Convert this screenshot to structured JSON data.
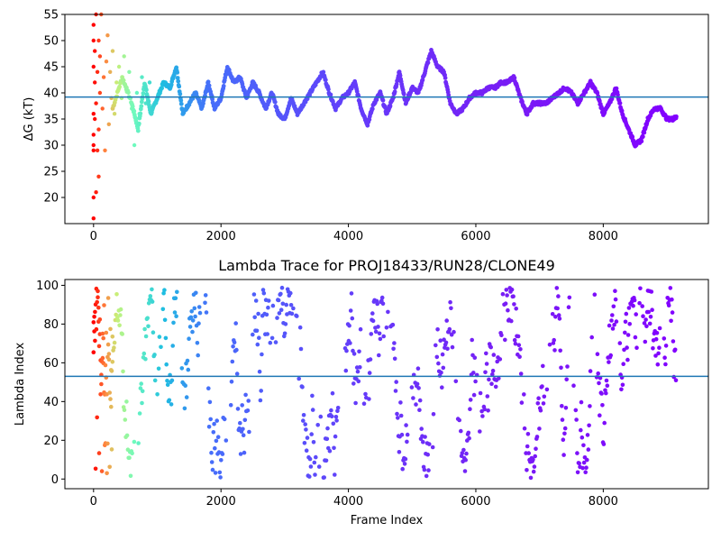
{
  "chart_data": [
    {
      "type": "scatter",
      "title": "",
      "xlabel": "",
      "ylabel": "ΔG (kT)",
      "xlim": [
        -450,
        9650
      ],
      "ylim": [
        15,
        55
      ],
      "xticks": [
        0,
        2000,
        4000,
        6000,
        8000
      ],
      "yticks": [
        20,
        25,
        30,
        35,
        40,
        45,
        50,
        55
      ],
      "hline": 39.2,
      "hline_color": "#1f77b4",
      "colormap": "rainbow (red at frame 0 → purple at last frame)",
      "grid": false,
      "trace_points": [
        [
          300,
          37
        ],
        [
          450,
          43
        ],
        [
          600,
          38
        ],
        [
          700,
          33
        ],
        [
          800,
          42
        ],
        [
          900,
          36
        ],
        [
          1000,
          39
        ],
        [
          1100,
          42
        ],
        [
          1200,
          41
        ],
        [
          1300,
          45
        ],
        [
          1400,
          36
        ],
        [
          1500,
          38
        ],
        [
          1600,
          40
        ],
        [
          1700,
          37
        ],
        [
          1800,
          42
        ],
        [
          1900,
          37
        ],
        [
          2000,
          39
        ],
        [
          2100,
          45
        ],
        [
          2200,
          42
        ],
        [
          2300,
          43
        ],
        [
          2400,
          39
        ],
        [
          2500,
          42
        ],
        [
          2600,
          40
        ],
        [
          2700,
          37
        ],
        [
          2800,
          40
        ],
        [
          2900,
          36
        ],
        [
          3000,
          35
        ],
        [
          3100,
          39
        ],
        [
          3200,
          36
        ],
        [
          3300,
          38
        ],
        [
          3400,
          40
        ],
        [
          3500,
          42
        ],
        [
          3600,
          44
        ],
        [
          3700,
          40
        ],
        [
          3800,
          37
        ],
        [
          3900,
          39
        ],
        [
          4000,
          40
        ],
        [
          4100,
          42
        ],
        [
          4200,
          37
        ],
        [
          4300,
          34
        ],
        [
          4400,
          38
        ],
        [
          4500,
          40
        ],
        [
          4600,
          36
        ],
        [
          4700,
          39
        ],
        [
          4800,
          44
        ],
        [
          4900,
          38
        ],
        [
          5000,
          41
        ],
        [
          5100,
          40
        ],
        [
          5200,
          44
        ],
        [
          5300,
          48
        ],
        [
          5400,
          45
        ],
        [
          5500,
          44
        ],
        [
          5600,
          38
        ],
        [
          5700,
          36
        ],
        [
          5800,
          37
        ],
        [
          5900,
          39
        ],
        [
          6000,
          40
        ],
        [
          6100,
          40
        ],
        [
          6200,
          41
        ],
        [
          6300,
          41
        ],
        [
          6400,
          42
        ],
        [
          6500,
          42
        ],
        [
          6600,
          43
        ],
        [
          6700,
          39
        ],
        [
          6800,
          36
        ],
        [
          6900,
          38
        ],
        [
          7000,
          38
        ],
        [
          7100,
          38
        ],
        [
          7200,
          39
        ],
        [
          7300,
          40
        ],
        [
          7400,
          41
        ],
        [
          7500,
          40
        ],
        [
          7600,
          38
        ],
        [
          7700,
          40
        ],
        [
          7800,
          42
        ],
        [
          7900,
          40
        ],
        [
          8000,
          36
        ],
        [
          8100,
          38
        ],
        [
          8200,
          41
        ],
        [
          8300,
          36
        ],
        [
          8400,
          33
        ],
        [
          8500,
          30
        ],
        [
          8600,
          31
        ],
        [
          8700,
          35
        ],
        [
          8800,
          37
        ],
        [
          8900,
          37
        ],
        [
          9000,
          35
        ],
        [
          9100,
          35
        ],
        [
          9150,
          35.5
        ]
      ],
      "early_scatter_points": [
        [
          0,
          16
        ],
        [
          0,
          20
        ],
        [
          0,
          30
        ],
        [
          0,
          32
        ],
        [
          0,
          45
        ],
        [
          0,
          50
        ],
        [
          0,
          53
        ],
        [
          0,
          36
        ],
        [
          0,
          29
        ],
        [
          20,
          48
        ],
        [
          20,
          35
        ],
        [
          20,
          42
        ],
        [
          40,
          55
        ],
        [
          40,
          21
        ],
        [
          40,
          38
        ],
        [
          60,
          29
        ],
        [
          60,
          44
        ],
        [
          80,
          24
        ],
        [
          80,
          50
        ],
        [
          80,
          33
        ],
        [
          100,
          47
        ],
        [
          100,
          40
        ],
        [
          120,
          55
        ],
        [
          140,
          37
        ],
        [
          160,
          43
        ],
        [
          180,
          29
        ],
        [
          200,
          46
        ],
        [
          220,
          51
        ],
        [
          240,
          34
        ],
        [
          260,
          44
        ],
        [
          280,
          39
        ],
        [
          300,
          48
        ],
        [
          330,
          36
        ],
        [
          360,
          42
        ],
        [
          400,
          45
        ],
        [
          440,
          39
        ],
        [
          480,
          47
        ],
        [
          520,
          41
        ],
        [
          560,
          44
        ],
        [
          600,
          37
        ],
        [
          640,
          30
        ],
        [
          680,
          40
        ],
        [
          720,
          36
        ],
        [
          760,
          43
        ],
        [
          820,
          38
        ],
        [
          880,
          42
        ]
      ]
    },
    {
      "type": "scatter",
      "title": "Lambda Trace for PROJ18433/RUN28/CLONE49",
      "xlabel": "Frame Index",
      "ylabel": "Lambda Index",
      "xlim": [
        -450,
        9650
      ],
      "ylim": [
        -5,
        103
      ],
      "xticks": [
        0,
        2000,
        4000,
        6000,
        8000
      ],
      "yticks": [
        0,
        20,
        40,
        60,
        80,
        100
      ],
      "hline": 53,
      "hline_color": "#1f77b4",
      "colormap": "rainbow (red at frame 0 → purple at last frame)",
      "grid": false,
      "frame_range": [
        0,
        9150
      ],
      "lambda_range": [
        0,
        99
      ]
    }
  ]
}
